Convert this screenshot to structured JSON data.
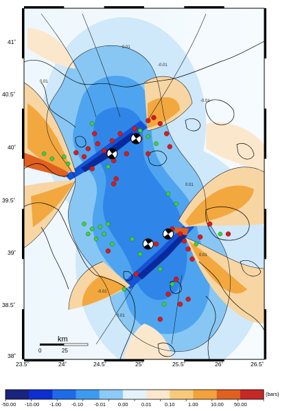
{
  "map": {
    "lon_ticks": [
      "23.5˚",
      "24˚",
      "24.5˚",
      "25˚",
      "25.5˚",
      "26˚",
      "26.5˚"
    ],
    "lat_ticks": [
      "41˚",
      "40.5˚",
      "40˚",
      "39.5˚",
      "39˚",
      "38.5˚",
      "38˚"
    ],
    "contour_labels": [
      "0.01",
      "-0.01",
      "0.01",
      "-0.01",
      "0.01",
      "-0.01",
      "0.01",
      "0.01"
    ],
    "scale_bar": {
      "label": "km",
      "ticks": [
        "0",
        "25"
      ]
    }
  },
  "colorbar": {
    "labels": [
      "-50.00",
      "-10.00",
      "-1.00",
      "-0.10",
      "-0.01",
      "0.00",
      "0.01",
      "0.10",
      "1.00",
      "10.00",
      "50.00"
    ],
    "unit": "(bars)",
    "colors": [
      "#1a237e",
      "#0d2fd0",
      "#1e6be8",
      "#3c9bf0",
      "#8ccaf7",
      "#e3f2fb",
      "#fbe8cc",
      "#f7c97b",
      "#f2a23a",
      "#e0601f",
      "#c62828"
    ]
  },
  "legend_colors": {
    "red_events": "#d81b1b",
    "green_events": "#3fd03f",
    "land_outline": "#000000"
  },
  "events_red": [
    [
      24.38,
      40.05
    ],
    [
      24.42,
      39.95
    ],
    [
      24.3,
      39.9
    ],
    [
      24.25,
      39.82
    ],
    [
      24.5,
      39.88
    ],
    [
      24.6,
      39.98
    ],
    [
      24.7,
      40.05
    ],
    [
      24.88,
      40.1
    ],
    [
      24.95,
      40.0
    ],
    [
      25.05,
      40.18
    ],
    [
      25.12,
      40.21
    ],
    [
      25.2,
      40.15
    ],
    [
      25.28,
      40.05
    ],
    [
      25.32,
      39.92
    ],
    [
      24.78,
      39.85
    ],
    [
      24.62,
      39.78
    ],
    [
      24.15,
      39.86
    ],
    [
      24.35,
      39.7
    ],
    [
      24.65,
      39.6
    ],
    [
      25.05,
      39.85
    ],
    [
      25.35,
      39.1
    ],
    [
      25.45,
      39.05
    ],
    [
      25.5,
      38.98
    ],
    [
      25.55,
      38.9
    ],
    [
      25.6,
      38.8
    ],
    [
      25.7,
      39.02
    ],
    [
      25.82,
      39.15
    ],
    [
      26.05,
      39.05
    ],
    [
      25.15,
      38.95
    ],
    [
      24.55,
      38.88
    ],
    [
      24.9,
      38.65
    ],
    [
      25.4,
      38.6
    ],
    [
      25.3,
      38.45
    ],
    [
      25.55,
      38.4
    ],
    [
      25.2,
      38.2
    ],
    [
      25.45,
      38.35
    ],
    [
      24.62,
      39.55
    ]
  ],
  "events_green": [
    [
      23.75,
      39.85
    ],
    [
      23.85,
      39.8
    ],
    [
      24.0,
      39.82
    ],
    [
      24.05,
      39.75
    ],
    [
      24.35,
      40.15
    ],
    [
      24.55,
      39.72
    ],
    [
      24.95,
      40.08
    ],
    [
      25.05,
      40.02
    ],
    [
      25.15,
      39.95
    ],
    [
      24.25,
      39.15
    ],
    [
      24.3,
      39.05
    ],
    [
      24.35,
      39.1
    ],
    [
      24.4,
      39.0
    ],
    [
      24.45,
      39.12
    ],
    [
      24.5,
      39.05
    ],
    [
      24.55,
      39.15
    ],
    [
      24.6,
      38.95
    ],
    [
      24.85,
      39.0
    ],
    [
      25.1,
      38.95
    ],
    [
      25.2,
      38.7
    ],
    [
      25.35,
      38.55
    ],
    [
      25.25,
      38.35
    ],
    [
      25.3,
      39.45
    ],
    [
      25.4,
      39.35
    ],
    [
      25.65,
      38.95
    ],
    [
      25.95,
      39.05
    ],
    [
      24.75,
      38.5
    ],
    [
      24.95,
      38.85
    ]
  ],
  "mechanisms": [
    [
      24.6,
      39.85
    ],
    [
      24.9,
      40.0
    ],
    [
      25.3,
      39.05
    ],
    [
      25.05,
      38.95
    ]
  ]
}
